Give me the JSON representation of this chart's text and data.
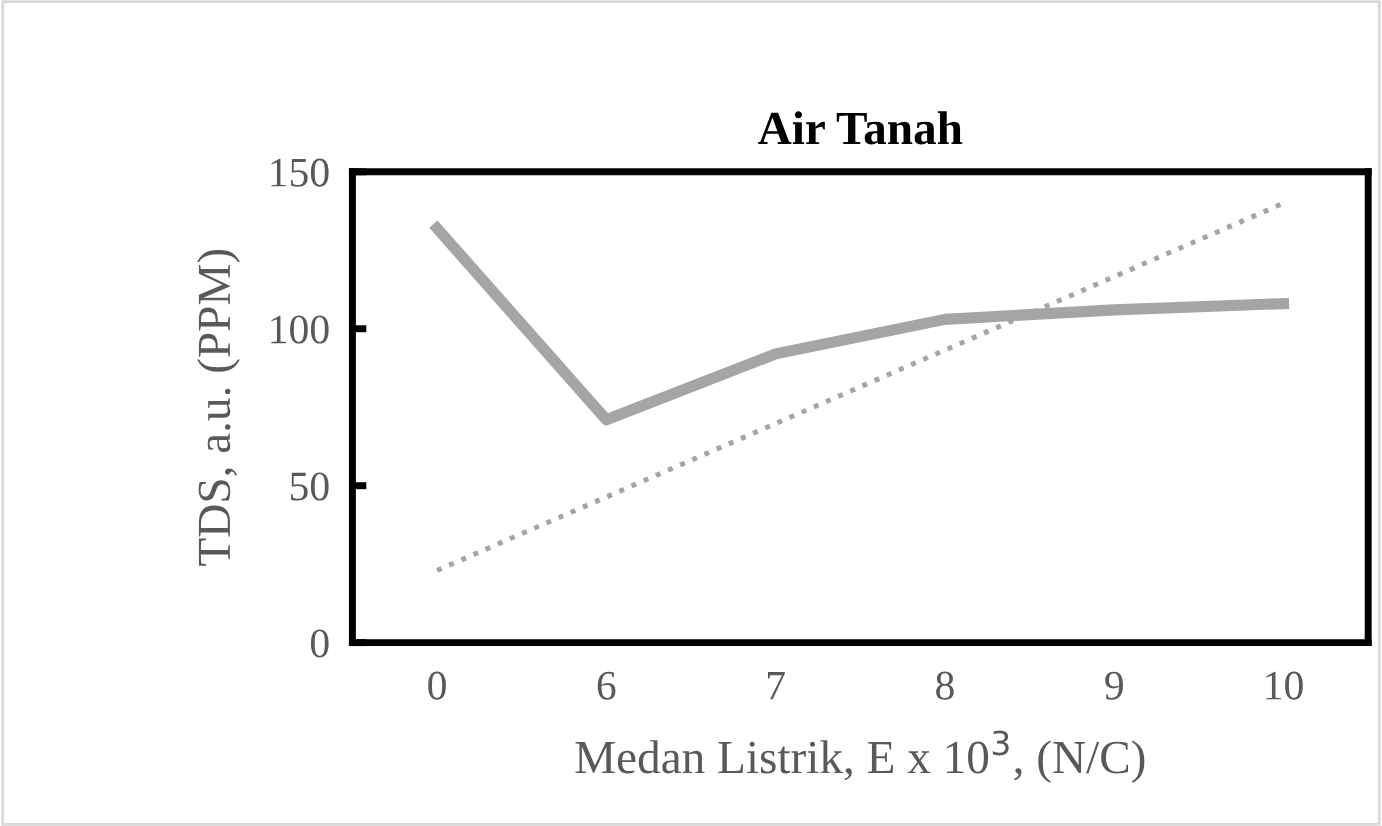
{
  "chart_data": {
    "type": "line",
    "title": "Air Tanah",
    "xlabel": "Medan Listrik, E x 10$^{3}$, (N/C)",
    "ylabel": "TDS, a.u. (PPM)",
    "categories": [
      "0",
      "6",
      "7",
      "8",
      "9",
      "10"
    ],
    "series": [
      {
        "color": "#a5a5a5",
        "values": [
          132,
          71,
          92,
          103,
          106,
          108
        ]
      },
      {
        "type": "line",
        "x": [
          "0",
          "10"
        ],
        "color": "#a5a5a5",
        "line_style": "dotted",
        "values": [
          23,
          140
        ]
      }
    ],
    "ylim": [
      0,
      150
    ],
    "yticks": [
      0,
      50,
      100,
      150
    ],
    "grid": false,
    "legend": false,
    "marker": "none"
  }
}
